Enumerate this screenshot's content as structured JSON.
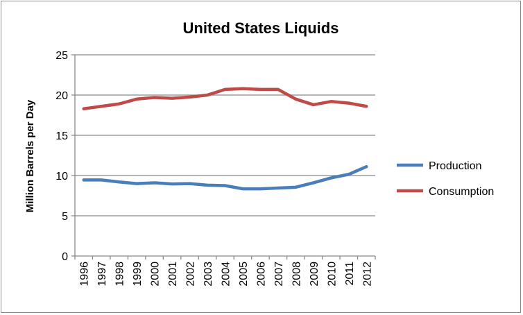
{
  "chart_data": {
    "type": "line",
    "title": "United States Liquids",
    "xlabel": "",
    "ylabel": "Million Barrels per Day",
    "ylim": [
      0,
      25
    ],
    "yticks": [
      "0",
      "5",
      "10",
      "15",
      "20",
      "25"
    ],
    "grid": true,
    "legend_position": "right",
    "categories": [
      "1996",
      "1997",
      "1998",
      "1999",
      "2000",
      "2001",
      "2002",
      "2003",
      "2004",
      "2005",
      "2006",
      "2007",
      "2008",
      "2009",
      "2010",
      "2011",
      "2012"
    ],
    "series": [
      {
        "name": "Production",
        "color": "#4a7ebb",
        "values": [
          9.45,
          9.45,
          9.2,
          9.0,
          9.1,
          8.95,
          9.0,
          8.8,
          8.75,
          8.35,
          8.35,
          8.45,
          8.55,
          9.1,
          9.7,
          10.15,
          11.1
        ]
      },
      {
        "name": "Consumption",
        "color": "#be4b48",
        "values": [
          18.3,
          18.6,
          18.9,
          19.5,
          19.7,
          19.6,
          19.75,
          20.0,
          20.7,
          20.8,
          20.7,
          20.7,
          19.5,
          18.8,
          19.2,
          19.0,
          18.6
        ]
      }
    ]
  }
}
